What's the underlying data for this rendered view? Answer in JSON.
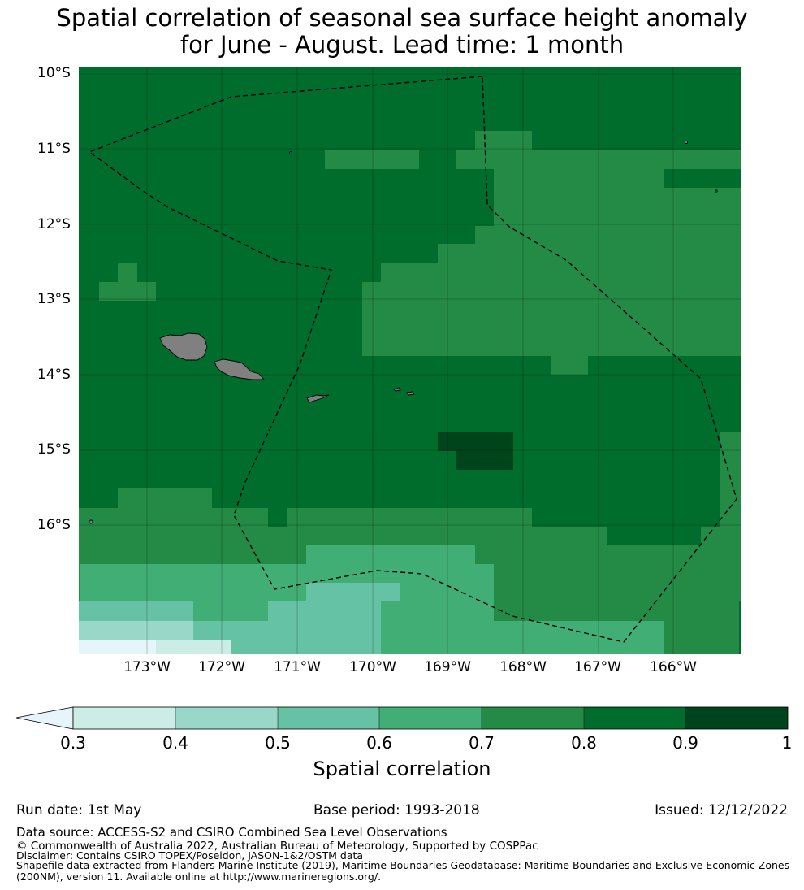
{
  "title": {
    "line1": "Spatial correlation of seasonal sea surface height anomaly",
    "line2": "for June - August. Lead time: 1 month"
  },
  "map": {
    "lat_labels": [
      "10°S",
      "11°S",
      "12°S",
      "13°S",
      "14°S",
      "15°S",
      "16°S"
    ],
    "lon_labels": [
      "173°W",
      "172°W",
      "171°W",
      "170°W",
      "169°W",
      "168°W",
      "167°W",
      "166°W"
    ],
    "extent": {
      "lon_min": -174.0,
      "lon_max": -165.2,
      "lat_max": -9.9,
      "lat_min": -17.7
    },
    "land_color": "#808080",
    "boundary_line": "dashed black"
  },
  "colorbar": {
    "label": "Spatial correlation",
    "ticks": [
      "0.3",
      "0.4",
      "0.5",
      "0.6",
      "0.7",
      "0.8",
      "0.9",
      "1"
    ],
    "colors": [
      "#ccece6",
      "#99d8c9",
      "#66c2a4",
      "#41ae76",
      "#238b45",
      "#006d2c",
      "#00441b"
    ],
    "under_color": "#e5f5f9"
  },
  "footer": {
    "run_date": "Run date: 1st May",
    "base_period": "Base period: 1993-2018",
    "issued": "Issued: 12/12/2022",
    "data_source": "Data source: ACCESS-S2 and CSIRO Combined Sea Level Observations",
    "copyright": "© Commonwealth of Australia 2022, Australian Bureau of Meteorology, Supported by COSPPac",
    "disclaimer": "Disclaimer: Contains CSIRO TOPEX/Poseidon, JASON-1&2/OSTM data",
    "shapefile_line1": "Shapefile data extracted from Flanders Marine Institute (2019), Maritime Boundaries Geodatabase: Maritime Boundaries and Exclusive Economic Zones",
    "shapefile_line2": "(200NM), version 11. Available online at http://www.marineregions.org/."
  }
}
